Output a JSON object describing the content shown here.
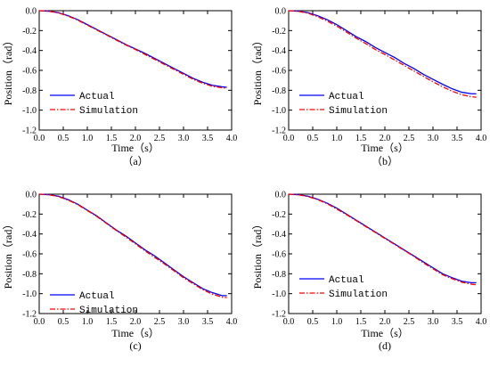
{
  "chart_data": [
    {
      "type": "line",
      "panel_label": "（a）",
      "xlabel": "Time（s）",
      "ylabel": "Position（rad）",
      "xlim": [
        0.0,
        4.0
      ],
      "ylim": [
        -1.2,
        0.0
      ],
      "xticks": [
        "0.0",
        "0.5",
        "1.0",
        "1.5",
        "2.0",
        "2.5",
        "3.0",
        "3.5",
        "4.0"
      ],
      "yticks": [
        "0.0",
        "-0.2",
        "-0.4",
        "-0.6",
        "-0.8",
        "-1.0",
        "-1.2"
      ],
      "legend": "center-left",
      "grid": false,
      "x": [
        0.0,
        0.2,
        0.4,
        0.6,
        0.8,
        1.0,
        1.2,
        1.4,
        1.6,
        1.8,
        2.0,
        2.2,
        2.4,
        2.6,
        2.8,
        3.0,
        3.2,
        3.4,
        3.6,
        3.8,
        3.9
      ],
      "series": [
        {
          "name": "Actual",
          "color": "#0000ff",
          "style": "solid",
          "values": [
            0.0,
            -0.005,
            -0.02,
            -0.05,
            -0.09,
            -0.14,
            -0.19,
            -0.24,
            -0.29,
            -0.34,
            -0.385,
            -0.43,
            -0.48,
            -0.53,
            -0.58,
            -0.63,
            -0.68,
            -0.72,
            -0.75,
            -0.765,
            -0.77
          ]
        },
        {
          "name": "Simulation",
          "color": "#ff0000",
          "style": "dashdot",
          "values": [
            0.0,
            -0.005,
            -0.022,
            -0.055,
            -0.095,
            -0.145,
            -0.195,
            -0.245,
            -0.295,
            -0.345,
            -0.39,
            -0.44,
            -0.49,
            -0.54,
            -0.59,
            -0.64,
            -0.69,
            -0.73,
            -0.76,
            -0.775,
            -0.78
          ]
        }
      ]
    },
    {
      "type": "line",
      "panel_label": "（b）",
      "xlabel": "Time（s）",
      "ylabel": "Position（rad）",
      "xlim": [
        0.0,
        4.0
      ],
      "ylim": [
        -1.2,
        0.0
      ],
      "xticks": [
        "0.0",
        "0.5",
        "1.0",
        "1.5",
        "2.0",
        "2.5",
        "3.0",
        "3.5",
        "4.0"
      ],
      "yticks": [
        "0.0",
        "-0.2",
        "-0.4",
        "-0.6",
        "-0.8",
        "-1.0",
        "-1.2"
      ],
      "legend": "center-left",
      "grid": false,
      "x": [
        0.0,
        0.2,
        0.4,
        0.6,
        0.8,
        1.0,
        1.2,
        1.4,
        1.6,
        1.8,
        2.0,
        2.2,
        2.4,
        2.6,
        2.8,
        3.0,
        3.2,
        3.4,
        3.6,
        3.8,
        3.9
      ],
      "series": [
        {
          "name": "Actual",
          "color": "#0000ff",
          "style": "solid",
          "values": [
            0.0,
            -0.005,
            -0.02,
            -0.05,
            -0.09,
            -0.14,
            -0.2,
            -0.26,
            -0.31,
            -0.37,
            -0.42,
            -0.47,
            -0.53,
            -0.58,
            -0.64,
            -0.69,
            -0.74,
            -0.785,
            -0.82,
            -0.835,
            -0.835
          ]
        },
        {
          "name": "Simulation",
          "color": "#ff0000",
          "style": "dashdot",
          "values": [
            0.0,
            -0.006,
            -0.025,
            -0.06,
            -0.105,
            -0.155,
            -0.215,
            -0.275,
            -0.33,
            -0.39,
            -0.44,
            -0.495,
            -0.55,
            -0.605,
            -0.66,
            -0.715,
            -0.765,
            -0.81,
            -0.845,
            -0.865,
            -0.87
          ]
        }
      ]
    },
    {
      "type": "line",
      "panel_label": "(c)",
      "xlabel": "Time（s）",
      "ylabel": "Position（rad）",
      "xlim": [
        0.0,
        4.0
      ],
      "ylim": [
        -1.2,
        0.0
      ],
      "xticks": [
        "0.0",
        "0.5",
        "1.0",
        "1.5",
        "2.0",
        "2.5",
        "3.0",
        "3.5",
        "4.0"
      ],
      "yticks": [
        "0.0",
        "-0.2",
        "-0.4",
        "-0.6",
        "-0.8",
        "-1.0",
        "-1.2"
      ],
      "legend": "bottom-left",
      "grid": false,
      "x": [
        0.0,
        0.2,
        0.4,
        0.6,
        0.8,
        1.0,
        1.2,
        1.4,
        1.6,
        1.8,
        2.0,
        2.2,
        2.4,
        2.6,
        2.8,
        3.0,
        3.2,
        3.4,
        3.6,
        3.8,
        3.9
      ],
      "series": [
        {
          "name": "Actual",
          "color": "#0000ff",
          "style": "solid",
          "values": [
            0.0,
            -0.005,
            -0.02,
            -0.055,
            -0.1,
            -0.16,
            -0.22,
            -0.29,
            -0.36,
            -0.42,
            -0.49,
            -0.56,
            -0.62,
            -0.69,
            -0.76,
            -0.83,
            -0.89,
            -0.95,
            -0.99,
            -1.02,
            -1.02
          ]
        },
        {
          "name": "Simulation",
          "color": "#ff0000",
          "style": "dashdot",
          "values": [
            0.0,
            -0.006,
            -0.024,
            -0.06,
            -0.105,
            -0.165,
            -0.225,
            -0.295,
            -0.365,
            -0.43,
            -0.5,
            -0.57,
            -0.635,
            -0.7,
            -0.77,
            -0.84,
            -0.9,
            -0.96,
            -1.005,
            -1.035,
            -1.04
          ]
        }
      ]
    },
    {
      "type": "line",
      "panel_label": "(d)",
      "xlabel": "Time（s）",
      "ylabel": "Position（rad）",
      "xlim": [
        0.0,
        4.0
      ],
      "ylim": [
        -1.2,
        0.0
      ],
      "xticks": [
        "0.0",
        "0.5",
        "1.0",
        "1.5",
        "2.0",
        "2.5",
        "3.0",
        "3.5",
        "4.0"
      ],
      "yticks": [
        "0.0",
        "-0.2",
        "-0.4",
        "-0.6",
        "-0.8",
        "-1.0",
        "-1.2"
      ],
      "legend": "center-left",
      "grid": false,
      "x": [
        0.0,
        0.2,
        0.4,
        0.6,
        0.8,
        1.0,
        1.2,
        1.4,
        1.6,
        1.8,
        2.0,
        2.2,
        2.4,
        2.6,
        2.8,
        3.0,
        3.2,
        3.4,
        3.6,
        3.8,
        3.9
      ],
      "series": [
        {
          "name": "Actual",
          "color": "#0000ff",
          "style": "solid",
          "values": [
            0.0,
            -0.005,
            -0.02,
            -0.05,
            -0.09,
            -0.14,
            -0.2,
            -0.26,
            -0.32,
            -0.38,
            -0.44,
            -0.5,
            -0.56,
            -0.62,
            -0.68,
            -0.74,
            -0.8,
            -0.84,
            -0.875,
            -0.89,
            -0.89
          ]
        },
        {
          "name": "Simulation",
          "color": "#ff0000",
          "style": "dashdot",
          "values": [
            0.0,
            -0.006,
            -0.024,
            -0.055,
            -0.095,
            -0.15,
            -0.205,
            -0.265,
            -0.325,
            -0.385,
            -0.445,
            -0.505,
            -0.565,
            -0.625,
            -0.69,
            -0.75,
            -0.81,
            -0.85,
            -0.885,
            -0.905,
            -0.91
          ]
        }
      ]
    }
  ]
}
